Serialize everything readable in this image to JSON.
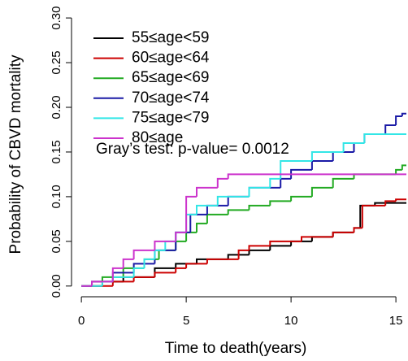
{
  "chart_data": {
    "type": "step",
    "xlabel": "Time to death(years)",
    "ylabel": "Probability of CBVD mortality",
    "annotation": "Gray’s test: p-value= 0.0012",
    "xlim": [
      -0.47,
      15.5
    ],
    "ylim": [
      -0.012,
      0.311
    ],
    "xticks": [
      0,
      5,
      10,
      15
    ],
    "yticks": [
      {
        "value": 0,
        "label": "0.00"
      },
      {
        "value": 0.05,
        "label": "0.05"
      },
      {
        "value": 0.1,
        "label": "0.10"
      },
      {
        "value": 0.15,
        "label": "0.15"
      },
      {
        "value": 0.2,
        "label": "0.20"
      },
      {
        "value": 0.25,
        "label": "0.25"
      },
      {
        "value": 0.3,
        "label": "0.30"
      }
    ],
    "series": [
      {
        "name": "55≤age<59",
        "color": "#000000",
        "x": [
          0,
          1,
          2,
          3.5,
          4.5,
          5.5,
          7,
          8,
          9,
          10,
          11,
          12,
          13,
          13.3,
          14,
          15.5
        ],
        "values": [
          0,
          0.005,
          0.01,
          0.02,
          0.025,
          0.03,
          0.035,
          0.04,
          0.045,
          0.05,
          0.055,
          0.06,
          0.065,
          0.09,
          0.093,
          0.093
        ]
      },
      {
        "name": "60≤age<64",
        "color": "#cc0000",
        "x": [
          0,
          1.5,
          2.5,
          3.5,
          4.5,
          5,
          6,
          7.5,
          8,
          9,
          10.5,
          12,
          13,
          13.4,
          14.5,
          15,
          15.5
        ],
        "values": [
          0,
          0.005,
          0.01,
          0.015,
          0.02,
          0.025,
          0.03,
          0.04,
          0.045,
          0.05,
          0.055,
          0.06,
          0.065,
          0.09,
          0.095,
          0.097,
          0.097
        ]
      },
      {
        "name": "65≤age<69",
        "color": "#22aa22",
        "x": [
          0,
          0.5,
          1,
          2,
          3,
          3.7,
          4.5,
          5,
          5.5,
          6,
          7,
          8,
          9,
          10,
          11,
          12,
          13,
          15,
          15.3,
          15.5
        ],
        "values": [
          0,
          0.005,
          0.01,
          0.02,
          0.03,
          0.04,
          0.05,
          0.06,
          0.07,
          0.08,
          0.085,
          0.09,
          0.095,
          0.1,
          0.11,
          0.12,
          0.125,
          0.13,
          0.135,
          0.135
        ]
      },
      {
        "name": "70≤age<74",
        "color": "#1a1aa6",
        "x": [
          0,
          0.5,
          1.5,
          2.5,
          3.5,
          4.5,
          5.2,
          6,
          7,
          8,
          9.5,
          10,
          11,
          12,
          13,
          13.5,
          14.5,
          15,
          15.3,
          15.5
        ],
        "values": [
          0,
          0.005,
          0.015,
          0.025,
          0.04,
          0.06,
          0.08,
          0.09,
          0.1,
          0.11,
          0.12,
          0.13,
          0.14,
          0.15,
          0.16,
          0.17,
          0.18,
          0.19,
          0.193,
          0.193
        ]
      },
      {
        "name": "75≤age<79",
        "color": "#33e6e6",
        "x": [
          0,
          1,
          1.5,
          2.5,
          3,
          3.5,
          4,
          4.5,
          5,
          5.5,
          6.5,
          8,
          9,
          9.5,
          11,
          12.5,
          13.5,
          15.5
        ],
        "values": [
          0,
          0.005,
          0.01,
          0.02,
          0.03,
          0.04,
          0.05,
          0.06,
          0.08,
          0.09,
          0.1,
          0.11,
          0.12,
          0.14,
          0.15,
          0.16,
          0.17,
          0.17
        ]
      },
      {
        "name": "80≤age",
        "color": "#cc33cc",
        "x": [
          0,
          0.5,
          1.5,
          2,
          2.5,
          3.5,
          4.5,
          5,
          5.5,
          6.5,
          7,
          15.5
        ],
        "values": [
          0,
          0.005,
          0.02,
          0.03,
          0.04,
          0.05,
          0.06,
          0.1,
          0.11,
          0.12,
          0.125,
          0.125
        ]
      }
    ]
  }
}
